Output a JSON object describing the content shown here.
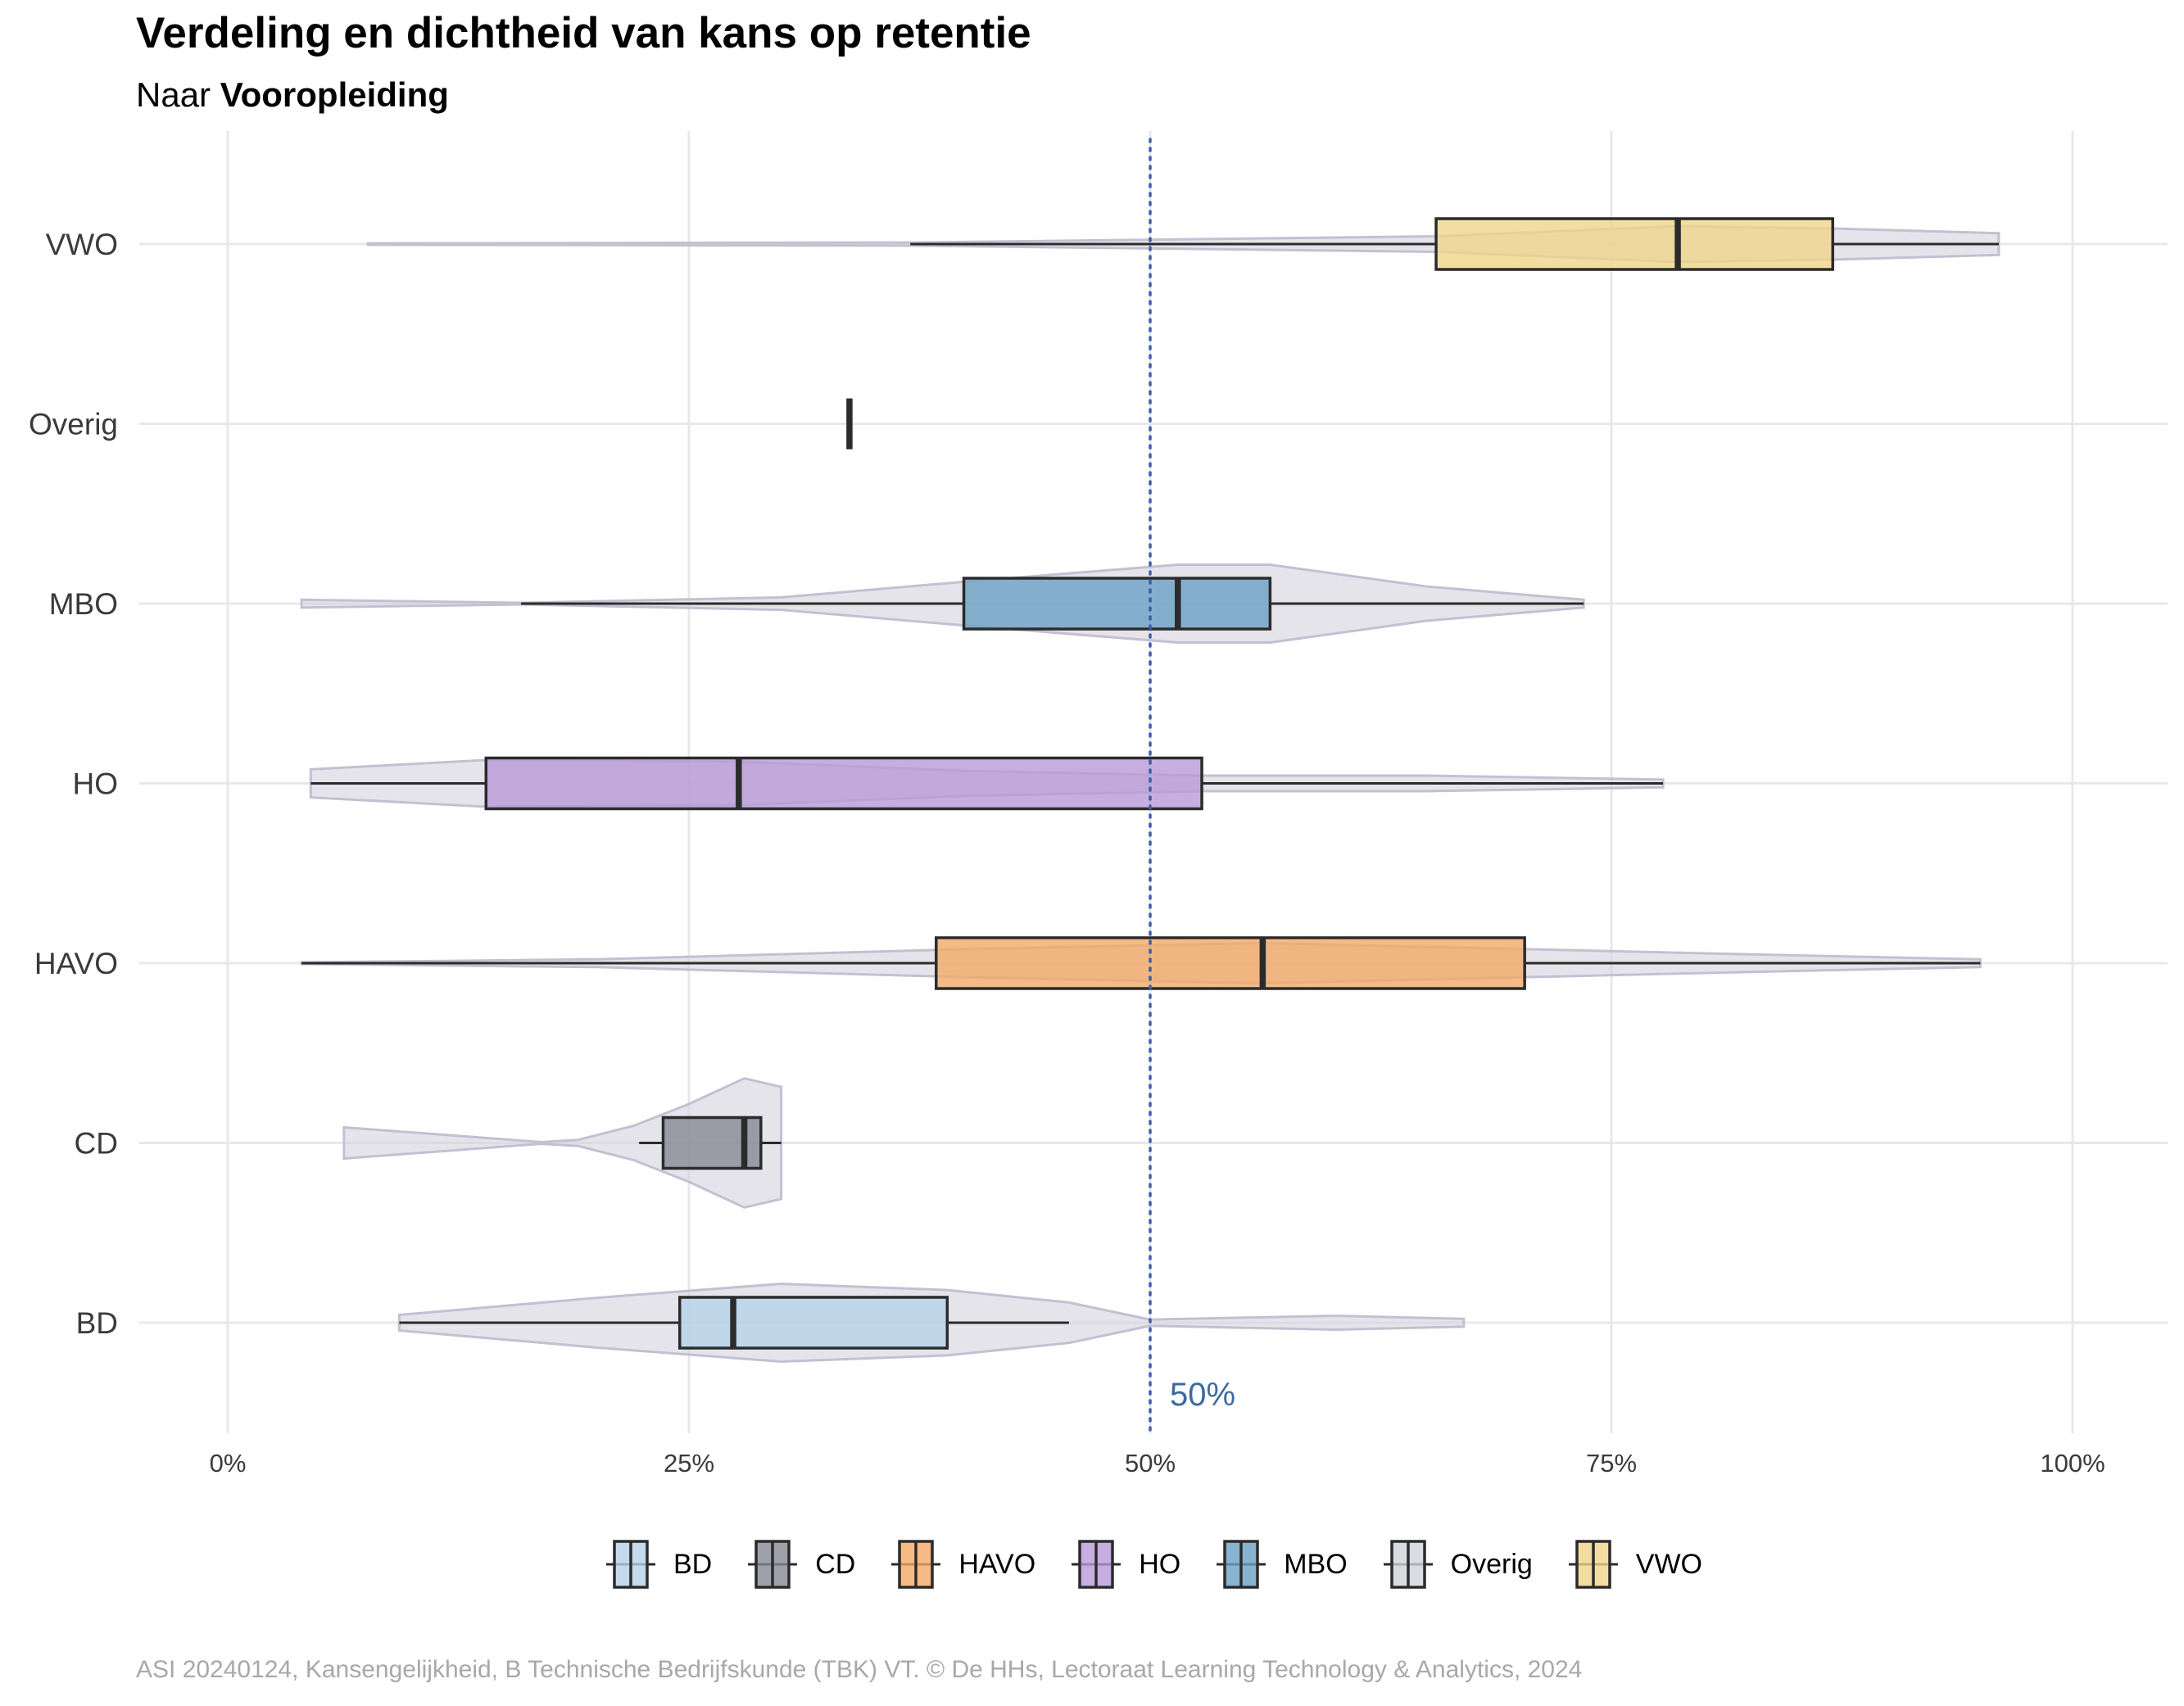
{
  "title": "Verdeling en dichtheid van kans op retentie",
  "subtitle_prefix": "Naar ",
  "subtitle_bold": "Vooropleiding",
  "caption": "ASI 20240124, Kansengelijkheid, B Technische Bedrijfskunde (TBK) VT. © De HHs, Lectoraat Learning Technology & Analytics, 2024",
  "colors": {
    "violin_fill": "#d5d2de",
    "violin_stroke": "#c3c0d2",
    "box_stroke": "#2b2b2b",
    "grid": "#e8e8e8",
    "reference_line": "#3b5fa8",
    "reference_label": "#3c6aa0"
  },
  "chart_data": {
    "type": "box-violin",
    "orientation": "horizontal",
    "xlim": [
      0,
      1
    ],
    "x_ticks": [
      {
        "value": 0,
        "label": "0%"
      },
      {
        "value": 0.25,
        "label": "25%"
      },
      {
        "value": 0.5,
        "label": "50%"
      },
      {
        "value": 0.75,
        "label": "75%"
      },
      {
        "value": 1,
        "label": "100%"
      }
    ],
    "categories": [
      "BD",
      "CD",
      "HAVO",
      "HO",
      "MBO",
      "Overig",
      "VWO"
    ],
    "reference_line": {
      "value": 0.5,
      "label": "50%"
    },
    "grid": true,
    "legend_position": "bottom",
    "series": [
      {
        "name": "BD",
        "color": "#b7d2e8",
        "min": 0.093,
        "q1": 0.245,
        "median": 0.274,
        "q3": 0.39,
        "max": 0.456,
        "density": [
          [
            0.093,
            0.1
          ],
          [
            0.2,
            0.32
          ],
          [
            0.3,
            0.5
          ],
          [
            0.39,
            0.42
          ],
          [
            0.456,
            0.26
          ],
          [
            0.5,
            0.04
          ],
          [
            0.6,
            0.09
          ],
          [
            0.67,
            0.05
          ]
        ]
      },
      {
        "name": "CD",
        "color": "#868a94",
        "min": 0.223,
        "q1": 0.236,
        "median": 0.28,
        "q3": 0.289,
        "max": 0.3,
        "density": [
          [
            0.063,
            0.2
          ],
          [
            0.12,
            0.1
          ],
          [
            0.17,
            0.01
          ],
          [
            0.19,
            0.04
          ],
          [
            0.22,
            0.22
          ],
          [
            0.25,
            0.5
          ],
          [
            0.28,
            0.83
          ],
          [
            0.3,
            0.72
          ]
        ]
      },
      {
        "name": "HAVO",
        "color": "#f4a967",
        "min": 0.04,
        "q1": 0.384,
        "median": 0.561,
        "q3": 0.703,
        "max": 0.95,
        "density": [
          [
            0.04,
            0.01
          ],
          [
            0.2,
            0.05
          ],
          [
            0.4,
            0.18
          ],
          [
            0.56,
            0.26
          ],
          [
            0.703,
            0.18
          ],
          [
            0.85,
            0.1
          ],
          [
            0.95,
            0.05
          ]
        ]
      },
      {
        "name": "HO",
        "color": "#b89ad8",
        "min": 0.045,
        "q1": 0.14,
        "median": 0.277,
        "q3": 0.528,
        "max": 0.778,
        "density": [
          [
            0.045,
            0.18
          ],
          [
            0.14,
            0.3
          ],
          [
            0.277,
            0.28
          ],
          [
            0.4,
            0.16
          ],
          [
            0.528,
            0.1
          ],
          [
            0.65,
            0.1
          ],
          [
            0.778,
            0.05
          ]
        ]
      },
      {
        "name": "MBO",
        "color": "#6aa1c6",
        "min": 0.159,
        "q1": 0.399,
        "median": 0.515,
        "q3": 0.565,
        "max": 0.735,
        "density": [
          [
            0.04,
            0.05
          ],
          [
            0.159,
            0.01
          ],
          [
            0.3,
            0.08
          ],
          [
            0.399,
            0.28
          ],
          [
            0.515,
            0.5
          ],
          [
            0.565,
            0.5
          ],
          [
            0.65,
            0.22
          ],
          [
            0.735,
            0.05
          ]
        ]
      },
      {
        "name": "Overig",
        "color": "#d0d3d8",
        "min": 0.337,
        "q1": 0.337,
        "median": 0.337,
        "q3": 0.337,
        "max": 0.337,
        "density": []
      },
      {
        "name": "VWO",
        "color": "#f0d58a",
        "min": 0.37,
        "q1": 0.655,
        "median": 0.786,
        "q3": 0.87,
        "max": 0.96,
        "density": [
          [
            0.076,
            0.01
          ],
          [
            0.37,
            0.02
          ],
          [
            0.655,
            0.1
          ],
          [
            0.786,
            0.23
          ],
          [
            0.87,
            0.2
          ],
          [
            0.96,
            0.14
          ]
        ]
      }
    ]
  }
}
